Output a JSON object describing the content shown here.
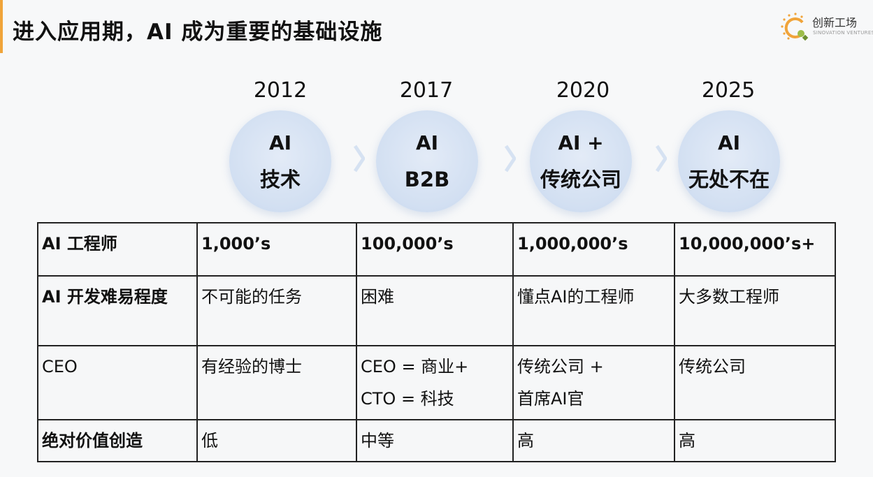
{
  "header": {
    "title": "进入应用期，AI 成为重要的基础设施",
    "logo_name": "创新工场",
    "logo_sub": "SINOVATION VENTURES",
    "accent_color": "#f0a43a"
  },
  "timeline": {
    "stages": [
      {
        "year": "2012",
        "line1": "AI",
        "line2": "技术"
      },
      {
        "year": "2017",
        "line1": "AI",
        "line2": "B2B"
      },
      {
        "year": "2020",
        "line1": "AI +",
        "line2": "传统公司"
      },
      {
        "year": "2025",
        "line1": "AI",
        "line2": "无处不在"
      }
    ],
    "circle_color": "#d3e0f2"
  },
  "table": {
    "rows": [
      {
        "label": "AI 工程师",
        "cells": [
          "1,000’s",
          "100,000’s",
          "1,000,000’s",
          "10,000,000’s+"
        ]
      },
      {
        "label": "AI 开发难易程度",
        "cells": [
          "不可能的任务",
          "困难",
          "懂点AI的工程师",
          "大多数工程师"
        ]
      },
      {
        "label": "CEO",
        "cells": [
          [
            "有经验的博士"
          ],
          [
            "CEO = 商业+",
            "CTO = 科技"
          ],
          [
            "传统公司 +",
            "首席AI官"
          ],
          [
            "传统公司"
          ]
        ]
      },
      {
        "label": "绝对价值创造",
        "cells": [
          "低",
          "中等",
          "高",
          "高"
        ]
      }
    ]
  }
}
